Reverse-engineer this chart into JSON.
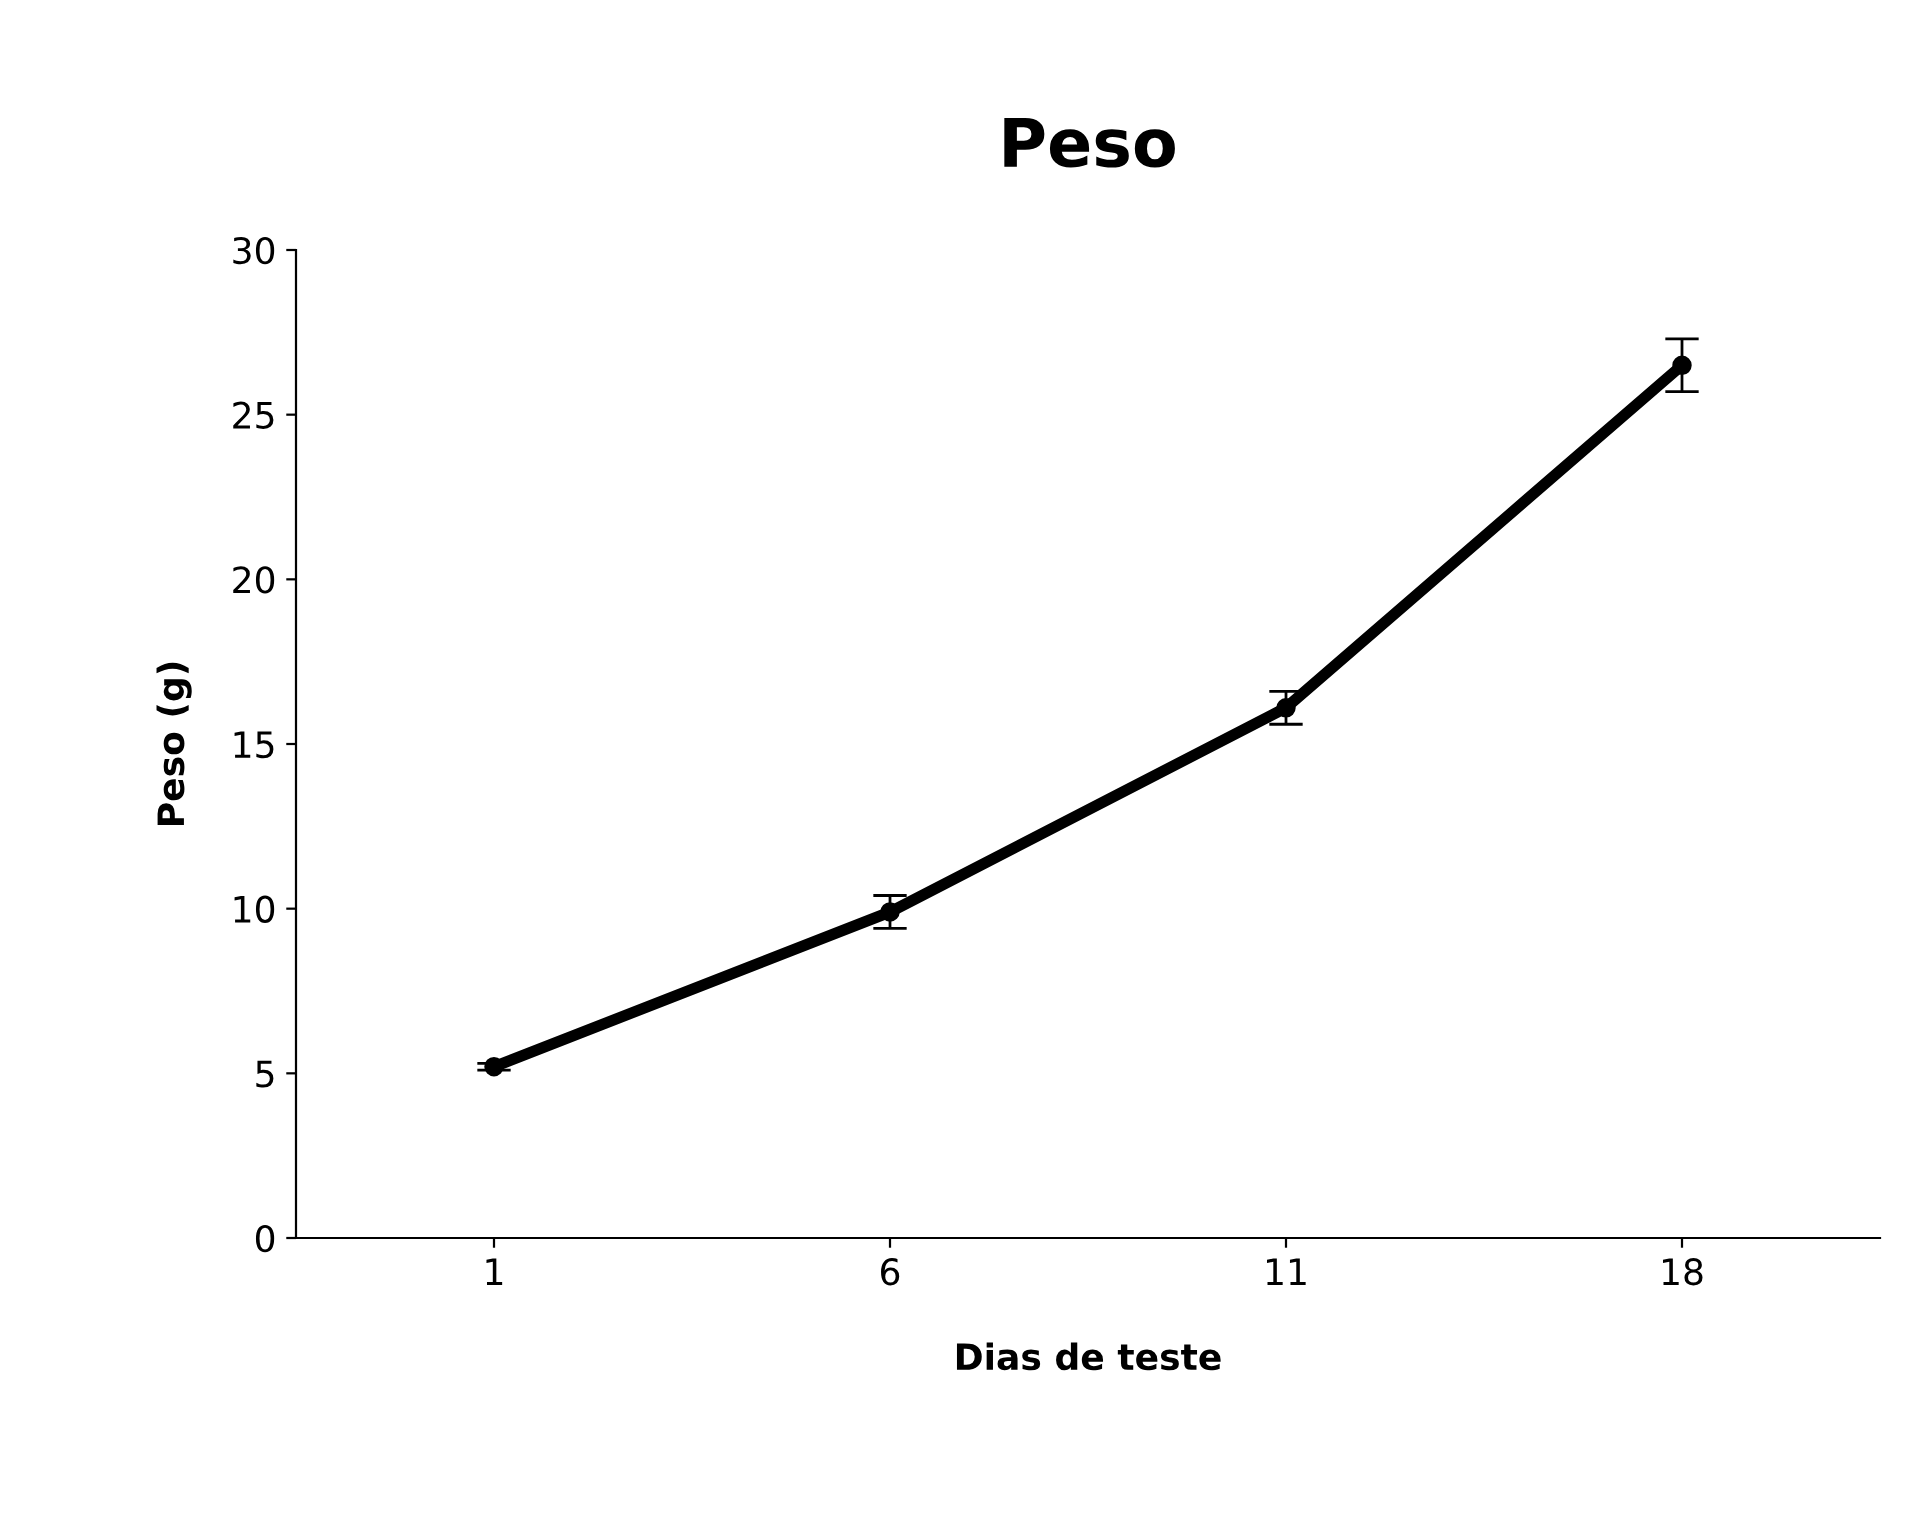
{
  "chart_data": {
    "type": "line",
    "title": "Peso",
    "xlabel": "Dias de teste",
    "ylabel": "Peso (g)",
    "categories": [
      "1",
      "6",
      "11",
      "18"
    ],
    "series": [
      {
        "color": "#000000",
        "values": [
          5.2,
          9.9,
          16.1,
          26.5
        ],
        "errors": [
          0.1,
          0.5,
          0.5,
          0.8
        ]
      }
    ],
    "ylim": [
      0,
      30
    ],
    "yticks": [
      0,
      5,
      10,
      15,
      20,
      25,
      30
    ],
    "grid": false,
    "legend": false,
    "marker": "circle",
    "line_style": "solid"
  }
}
